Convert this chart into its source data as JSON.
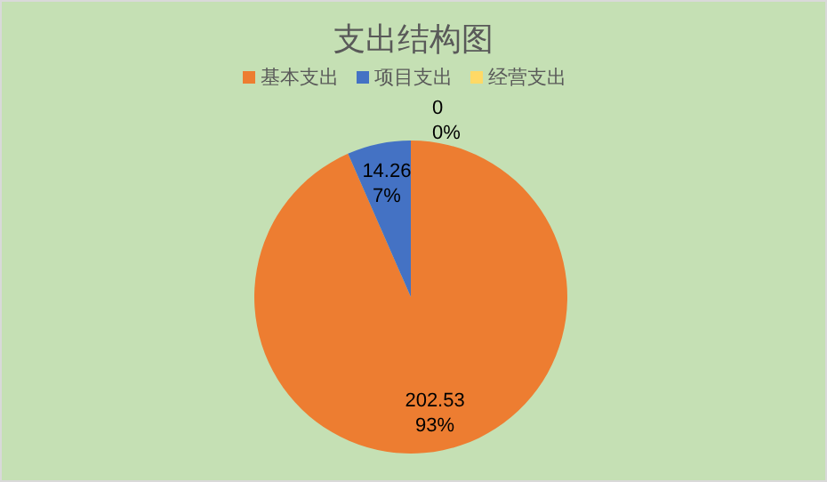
{
  "chart_data": {
    "type": "pie",
    "title": "支出结构图",
    "legend": "top",
    "categories": [
      "基本支出",
      "项目支出",
      "经营支出"
    ],
    "values": [
      202.53,
      14.26,
      0
    ],
    "colors": [
      "#ed7d31",
      "#4472c4",
      "#ffd966"
    ],
    "value_labels": [
      "202.53\n93%",
      "14.26\n7%",
      "0\n0%"
    ]
  }
}
